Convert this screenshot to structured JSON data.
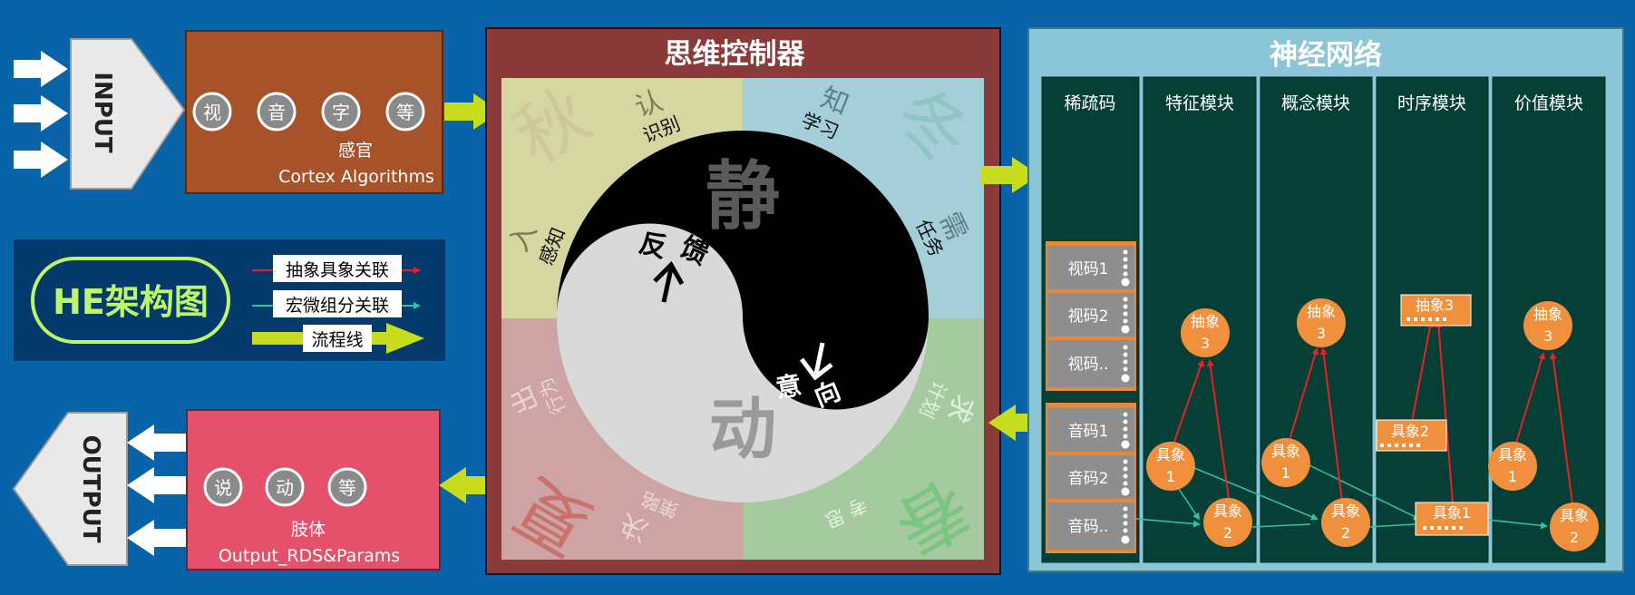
{
  "input": {
    "label": "INPUT"
  },
  "output": {
    "label": "OUTPUT"
  },
  "sensor": {
    "circles": [
      "视",
      "音",
      "字",
      "等"
    ],
    "title": "感官",
    "subtitle": "Cortex Algorithms"
  },
  "body_box": {
    "circles": [
      "说",
      "动",
      "等"
    ],
    "title": "肢体",
    "subtitle": "Output_RDS&Params"
  },
  "legend": {
    "title": "HE架构图",
    "items": [
      {
        "label": "抽象具象关联",
        "color": "#e8202a"
      },
      {
        "label": "宏微组分关联",
        "color": "#2ec4a8"
      },
      {
        "label": "流程线",
        "color": "#c6dc1c"
      }
    ]
  },
  "controller": {
    "title": "思维控制器",
    "quadrants": {
      "tl": {
        "big": "秋",
        "words": [
          "认",
          "识别",
          "入",
          "感知"
        ]
      },
      "tr": {
        "big": "冬",
        "words": [
          "知",
          "学习",
          "需",
          "任务"
        ]
      },
      "bl": {
        "big": "夏",
        "words": [
          "出",
          "行为",
          "决",
          "策略"
        ]
      },
      "br": {
        "big": "春",
        "words": [
          "求",
          "计划",
          "思",
          "考"
        ]
      }
    },
    "jing": "静",
    "dong": "动",
    "fankui": [
      "反",
      "馈"
    ],
    "yixiang": [
      "意",
      "向"
    ]
  },
  "network": {
    "title": "神经网络",
    "columns": [
      "稀疏码",
      "特征模块",
      "概念模块",
      "时序模块",
      "价值模块"
    ],
    "visual_codes": [
      "视码1",
      "视码2",
      "视码.."
    ],
    "audio_codes": [
      "音码1",
      "音码2",
      "音码.."
    ],
    "nodes": {
      "c1": {
        "abs": [
          "抽象",
          "3"
        ],
        "con1": [
          "具象",
          "1"
        ],
        "con2": [
          "具象",
          "2"
        ]
      },
      "c2": {
        "abs": [
          "抽象",
          "3"
        ],
        "con1": [
          "具象",
          "1"
        ],
        "con2": [
          "具象",
          "2"
        ]
      },
      "c3": {
        "abs": "抽象3",
        "con1": "具象2",
        "con2": "具象1"
      },
      "c4": {
        "abs": [
          "抽象",
          "3"
        ],
        "con1": [
          "具象",
          "1"
        ],
        "con2": [
          "具象",
          "2"
        ]
      }
    }
  }
}
